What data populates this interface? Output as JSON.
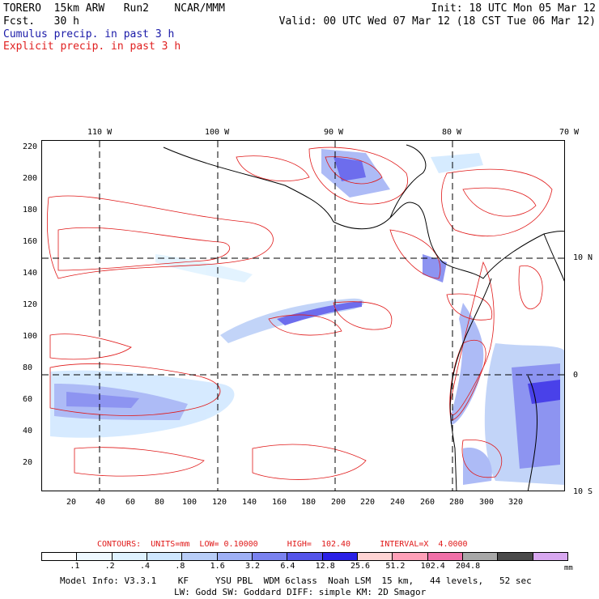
{
  "header": {
    "model": "TORERO  15km ARW   Run2    NCAR/MMM",
    "fcst_label": "Fcst.",
    "fcst_value": "30 h",
    "init": "Init: 18 UTC Mon 05 Mar 12",
    "valid": "Valid: 00 UTC Wed 07 Mar 12 (18 CST Tue 06 Mar 12)",
    "line1": "Cumulus precip. in past 3 h",
    "line2": "Explicit precip. in past 3 h"
  },
  "axes": {
    "top_lon": [
      "110 W",
      "100 W",
      "90 W",
      "80 W",
      "70 W"
    ],
    "right_lat": [
      "10 N",
      "0",
      "10 S"
    ],
    "left_y": [
      "220",
      "200",
      "180",
      "160",
      "140",
      "120",
      "100",
      "80",
      "60",
      "40",
      "20"
    ],
    "bottom_x": [
      "20",
      "40",
      "60",
      "80",
      "100",
      "120",
      "140",
      "160",
      "180",
      "200",
      "220",
      "240",
      "260",
      "280",
      "300",
      "320"
    ]
  },
  "contours": {
    "line": "CONTOURS:  UNITS=mm  LOW= 0.10000      HIGH=  102.40      INTERVAL=X  4.0000"
  },
  "colorbar": {
    "colors": [
      "#ffffff",
      "#eef8ff",
      "#dff2ff",
      "#cfe7ff",
      "#b8cdf7",
      "#9fb0f5",
      "#7a82ef",
      "#5454ea",
      "#2a20e6",
      "#ffd4d4",
      "#ffa0b8",
      "#f070a8",
      "#a8a8a8",
      "#4a4a4a",
      "#d8a8f0"
    ],
    "labels": [
      ".1",
      ".2",
      ".4",
      ".8",
      "1.6",
      "3.2",
      "6.4",
      "12.8",
      "25.6",
      "51.2",
      "102.4",
      "204.8"
    ],
    "unit": "mm"
  },
  "footer": {
    "line1": "Model Info: V3.3.1    KF     YSU PBL  WDM 6class  Noah LSM  15 km,   44 levels,   52 sec",
    "line2": "LW: Godd SW: Goddard DIFF: simple KM: 2D Smagor"
  }
}
